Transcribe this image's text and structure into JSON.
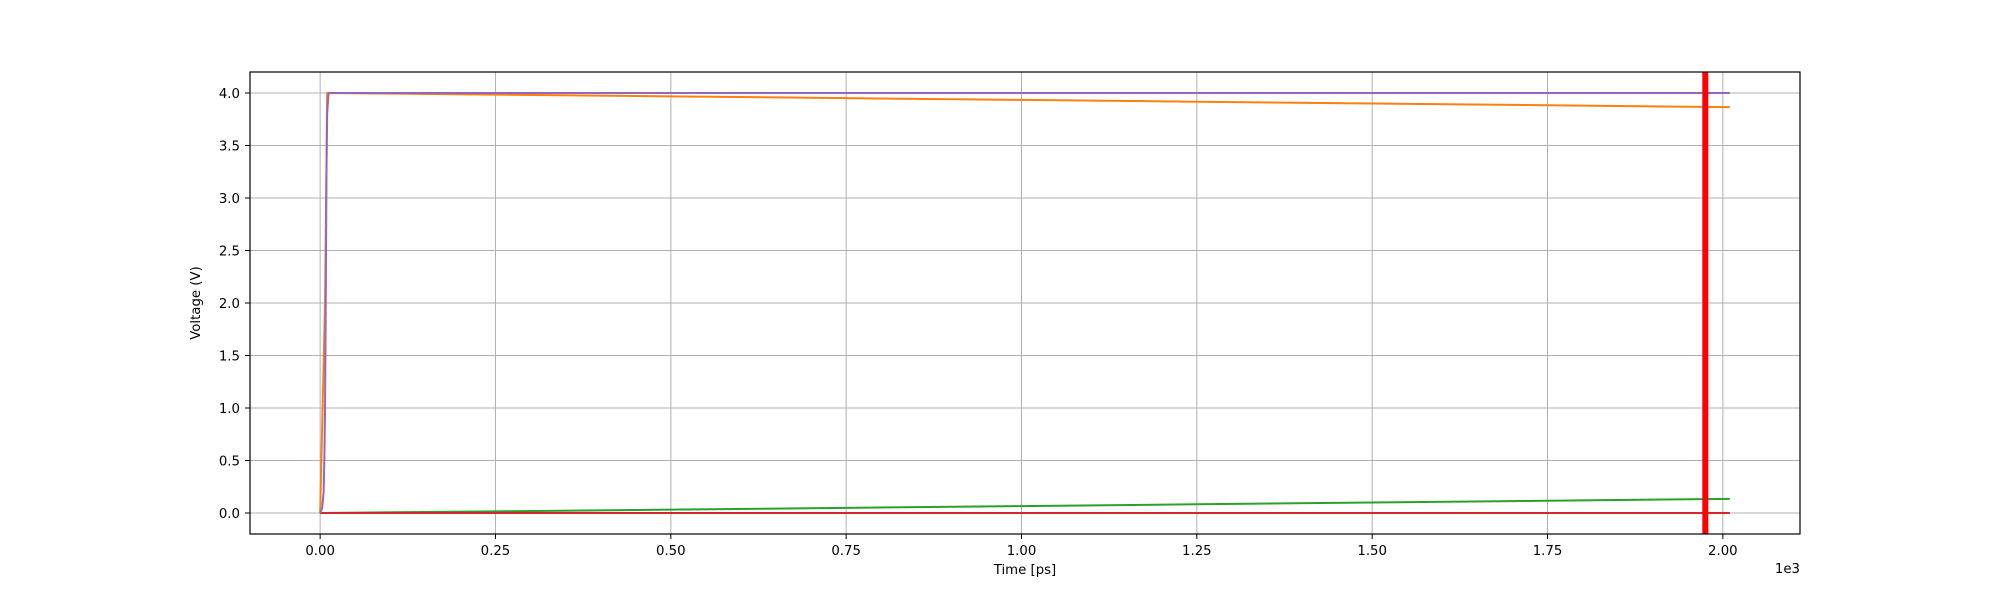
{
  "chart_data": {
    "type": "line",
    "title": "",
    "xlabel": "Time [ps]",
    "ylabel": "Voltage (V)",
    "x_multiplier_label": "1e3",
    "xlim": [
      -0.1,
      2.11
    ],
    "ylim": [
      -0.2,
      4.2
    ],
    "x_ticks": [
      0.0,
      0.25,
      0.5,
      0.75,
      1.0,
      1.25,
      1.5,
      1.75,
      2.0
    ],
    "x_tick_labels": [
      "0.00",
      "0.25",
      "0.50",
      "0.75",
      "1.00",
      "1.25",
      "1.50",
      "1.75",
      "2.00"
    ],
    "y_ticks": [
      0.0,
      0.5,
      1.0,
      1.5,
      2.0,
      2.5,
      3.0,
      3.5,
      4.0
    ],
    "y_tick_labels": [
      "0.0",
      "0.5",
      "1.0",
      "1.5",
      "2.0",
      "2.5",
      "3.0",
      "3.5",
      "4.0"
    ],
    "grid": true,
    "legend": false,
    "series": [
      {
        "color": "#2ca02c",
        "x": [
          0.0,
          0.25,
          0.5,
          0.75,
          1.0,
          1.25,
          1.5,
          1.75,
          2.01
        ],
        "y": [
          0.0,
          0.016,
          0.032,
          0.049,
          0.066,
          0.083,
          0.1,
          0.117,
          0.135
        ]
      },
      {
        "color": "#d62728",
        "x": [
          0.0,
          2.01
        ],
        "y": [
          0.0,
          0.0
        ]
      },
      {
        "color": "#ff7f0e",
        "x": [
          0.0,
          0.007,
          0.01,
          0.25,
          0.5,
          0.75,
          1.0,
          1.25,
          1.5,
          1.75,
          2.01
        ],
        "y": [
          0.0,
          2.0,
          4.0,
          3.985,
          3.968,
          3.951,
          3.934,
          3.917,
          3.9,
          3.883,
          3.865
        ]
      },
      {
        "color": "#9467bd",
        "x": [
          0.0,
          0.003,
          0.005,
          0.006,
          0.007,
          0.008,
          0.009,
          0.01,
          0.012,
          2.01
        ],
        "y": [
          0.0,
          0.05,
          0.2,
          0.5,
          1.0,
          2.0,
          3.2,
          3.8,
          4.0,
          4.0
        ]
      }
    ],
    "marker_line": {
      "x": 1.975,
      "color": "#ff0000"
    }
  }
}
